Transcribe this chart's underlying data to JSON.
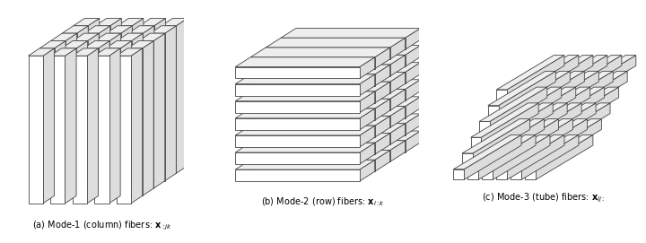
{
  "background_color": "#ffffff",
  "fig_width": 7.2,
  "fig_height": 2.71,
  "dpi": 100,
  "captions": [
    "(a) Mode-1 (column) fibers: $\\mathbf{x}_{:jk}$",
    "(b) Mode-2 (row) fibers: $\\mathbf{x}_{i:k}$",
    "(c) Mode-3 (tube) fibers: $\\mathbf{x}_{ij:}$"
  ],
  "line_color": "#444444",
  "line_width": 0.6,
  "caption_fontsize": 7.0,
  "fc_white": "#ffffff",
  "fc_light": "#eeeeee",
  "fc_mid": "#dddddd",
  "fc_dark": "#cccccc"
}
